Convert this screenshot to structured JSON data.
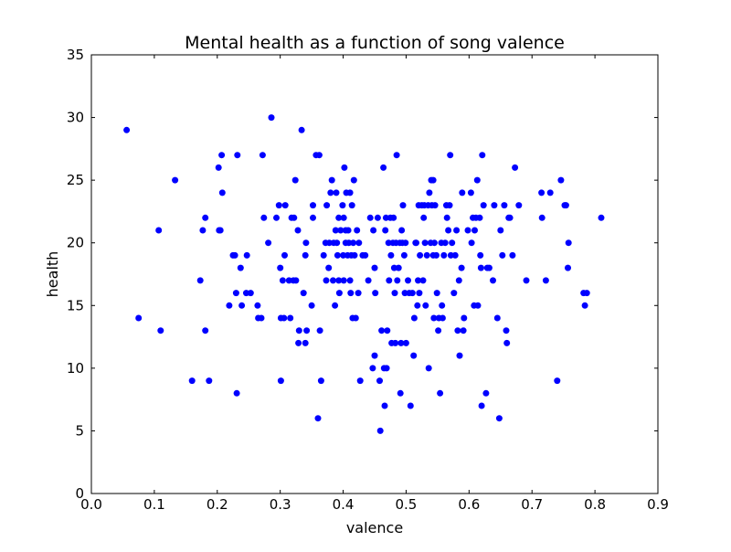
{
  "chart_data": {
    "type": "scatter",
    "title": "Mental health as a function of song valence",
    "xlabel": "valence",
    "ylabel": "health",
    "xlim": [
      0.0,
      0.9
    ],
    "ylim": [
      0,
      35
    ],
    "xticks": [
      "0.0",
      "0.1",
      "0.2",
      "0.3",
      "0.4",
      "0.5",
      "0.6",
      "0.7",
      "0.8",
      "0.9"
    ],
    "yticks": [
      "0",
      "5",
      "10",
      "15",
      "20",
      "25",
      "30",
      "35"
    ],
    "grid": false,
    "marker_color": "#0000ff",
    "series": [
      {
        "points": [
          [
            0.056,
            29
          ],
          [
            0.075,
            14
          ],
          [
            0.107,
            21
          ],
          [
            0.11,
            13
          ],
          [
            0.133,
            25
          ],
          [
            0.16,
            9
          ],
          [
            0.173,
            17
          ],
          [
            0.177,
            21
          ],
          [
            0.181,
            13
          ],
          [
            0.181,
            22
          ],
          [
            0.187,
            9
          ],
          [
            0.202,
            26
          ],
          [
            0.203,
            21
          ],
          [
            0.205,
            21
          ],
          [
            0.207,
            27
          ],
          [
            0.208,
            24
          ],
          [
            0.219,
            15
          ],
          [
            0.225,
            19
          ],
          [
            0.228,
            19
          ],
          [
            0.23,
            16
          ],
          [
            0.231,
            8
          ],
          [
            0.232,
            27
          ],
          [
            0.237,
            18
          ],
          [
            0.239,
            15
          ],
          [
            0.246,
            16
          ],
          [
            0.247,
            19
          ],
          [
            0.253,
            16
          ],
          [
            0.264,
            15
          ],
          [
            0.265,
            14
          ],
          [
            0.27,
            14
          ],
          [
            0.272,
            27
          ],
          [
            0.274,
            22
          ],
          [
            0.281,
            20
          ],
          [
            0.286,
            30
          ],
          [
            0.294,
            22
          ],
          [
            0.298,
            23
          ],
          [
            0.3,
            18
          ],
          [
            0.301,
            9
          ],
          [
            0.301,
            14
          ],
          [
            0.304,
            17
          ],
          [
            0.306,
            14
          ],
          [
            0.307,
            19
          ],
          [
            0.308,
            23
          ],
          [
            0.314,
            17
          ],
          [
            0.316,
            14
          ],
          [
            0.318,
            22
          ],
          [
            0.321,
            17
          ],
          [
            0.322,
            22
          ],
          [
            0.324,
            25
          ],
          [
            0.325,
            17
          ],
          [
            0.328,
            21
          ],
          [
            0.329,
            12
          ],
          [
            0.33,
            13
          ],
          [
            0.334,
            29
          ],
          [
            0.337,
            16
          ],
          [
            0.34,
            12
          ],
          [
            0.34,
            19
          ],
          [
            0.341,
            20
          ],
          [
            0.342,
            13
          ],
          [
            0.35,
            15
          ],
          [
            0.352,
            23
          ],
          [
            0.352,
            22
          ],
          [
            0.357,
            27
          ],
          [
            0.36,
            6
          ],
          [
            0.362,
            27
          ],
          [
            0.363,
            13
          ],
          [
            0.365,
            9
          ],
          [
            0.369,
            19
          ],
          [
            0.372,
            20
          ],
          [
            0.373,
            17
          ],
          [
            0.374,
            23
          ],
          [
            0.377,
            18
          ],
          [
            0.378,
            20
          ],
          [
            0.38,
            24
          ],
          [
            0.382,
            25
          ],
          [
            0.384,
            17
          ],
          [
            0.385,
            20
          ],
          [
            0.387,
            15
          ],
          [
            0.388,
            21
          ],
          [
            0.389,
            24
          ],
          [
            0.39,
            20
          ],
          [
            0.391,
            19
          ],
          [
            0.393,
            17
          ],
          [
            0.393,
            22
          ],
          [
            0.394,
            16
          ],
          [
            0.396,
            21
          ],
          [
            0.399,
            23
          ],
          [
            0.4,
            19
          ],
          [
            0.401,
            22
          ],
          [
            0.401,
            17
          ],
          [
            0.402,
            26
          ],
          [
            0.404,
            21
          ],
          [
            0.404,
            20
          ],
          [
            0.405,
            24
          ],
          [
            0.407,
            19
          ],
          [
            0.408,
            21
          ],
          [
            0.409,
            20
          ],
          [
            0.411,
            24
          ],
          [
            0.411,
            17
          ],
          [
            0.412,
            16
          ],
          [
            0.413,
            19
          ],
          [
            0.414,
            23
          ],
          [
            0.415,
            14
          ],
          [
            0.416,
            20
          ],
          [
            0.417,
            25
          ],
          [
            0.418,
            19
          ],
          [
            0.42,
            14
          ],
          [
            0.422,
            21
          ],
          [
            0.424,
            16
          ],
          [
            0.425,
            20
          ],
          [
            0.427,
            9
          ],
          [
            0.431,
            19
          ],
          [
            0.435,
            19
          ],
          [
            0.44,
            17
          ],
          [
            0.443,
            22
          ],
          [
            0.447,
            10
          ],
          [
            0.448,
            21
          ],
          [
            0.45,
            18
          ],
          [
            0.45,
            11
          ],
          [
            0.451,
            16
          ],
          [
            0.455,
            22
          ],
          [
            0.458,
            9
          ],
          [
            0.459,
            5
          ],
          [
            0.461,
            13
          ],
          [
            0.464,
            26
          ],
          [
            0.465,
            10
          ],
          [
            0.466,
            7
          ],
          [
            0.467,
            21
          ],
          [
            0.468,
            22
          ],
          [
            0.469,
            10
          ],
          [
            0.47,
            13
          ],
          [
            0.472,
            20
          ],
          [
            0.473,
            17
          ],
          [
            0.475,
            22
          ],
          [
            0.476,
            19
          ],
          [
            0.477,
            12
          ],
          [
            0.479,
            20
          ],
          [
            0.48,
            22
          ],
          [
            0.481,
            18
          ],
          [
            0.482,
            16
          ],
          [
            0.483,
            12
          ],
          [
            0.484,
            20
          ],
          [
            0.485,
            27
          ],
          [
            0.486,
            17
          ],
          [
            0.488,
            18
          ],
          [
            0.49,
            20
          ],
          [
            0.491,
            8
          ],
          [
            0.492,
            12
          ],
          [
            0.493,
            21
          ],
          [
            0.494,
            20
          ],
          [
            0.495,
            23
          ],
          [
            0.497,
            19
          ],
          [
            0.498,
            16
          ],
          [
            0.499,
            20
          ],
          [
            0.5,
            12
          ],
          [
            0.503,
            17
          ],
          [
            0.505,
            16
          ],
          [
            0.507,
            7
          ],
          [
            0.51,
            16
          ],
          [
            0.512,
            11
          ],
          [
            0.513,
            14
          ],
          [
            0.515,
            20
          ],
          [
            0.516,
            20
          ],
          [
            0.518,
            15
          ],
          [
            0.519,
            17
          ],
          [
            0.52,
            23
          ],
          [
            0.521,
            16
          ],
          [
            0.522,
            19
          ],
          [
            0.525,
            23
          ],
          [
            0.527,
            17
          ],
          [
            0.528,
            22
          ],
          [
            0.529,
            23
          ],
          [
            0.53,
            20
          ],
          [
            0.531,
            15
          ],
          [
            0.533,
            19
          ],
          [
            0.535,
            23
          ],
          [
            0.536,
            10
          ],
          [
            0.537,
            24
          ],
          [
            0.539,
            20
          ],
          [
            0.54,
            25
          ],
          [
            0.541,
            23
          ],
          [
            0.543,
            25
          ],
          [
            0.543,
            19
          ],
          [
            0.544,
            14
          ],
          [
            0.545,
            20
          ],
          [
            0.546,
            23
          ],
          [
            0.548,
            19
          ],
          [
            0.549,
            16
          ],
          [
            0.551,
            13
          ],
          [
            0.552,
            14
          ],
          [
            0.554,
            8
          ],
          [
            0.556,
            20
          ],
          [
            0.557,
            15
          ],
          [
            0.558,
            14
          ],
          [
            0.56,
            19
          ],
          [
            0.562,
            20
          ],
          [
            0.564,
            23
          ],
          [
            0.565,
            22
          ],
          [
            0.567,
            21
          ],
          [
            0.569,
            23
          ],
          [
            0.57,
            27
          ],
          [
            0.571,
            19
          ],
          [
            0.573,
            20
          ],
          [
            0.576,
            16
          ],
          [
            0.578,
            19
          ],
          [
            0.58,
            21
          ],
          [
            0.582,
            13
          ],
          [
            0.584,
            17
          ],
          [
            0.585,
            11
          ],
          [
            0.588,
            18
          ],
          [
            0.589,
            24
          ],
          [
            0.591,
            13
          ],
          [
            0.592,
            14
          ],
          [
            0.598,
            21
          ],
          [
            0.603,
            24
          ],
          [
            0.604,
            20
          ],
          [
            0.606,
            22
          ],
          [
            0.608,
            15
          ],
          [
            0.609,
            21
          ],
          [
            0.611,
            22
          ],
          [
            0.613,
            25
          ],
          [
            0.614,
            15
          ],
          [
            0.617,
            22
          ],
          [
            0.618,
            19
          ],
          [
            0.619,
            18
          ],
          [
            0.62,
            7
          ],
          [
            0.621,
            27
          ],
          [
            0.623,
            23
          ],
          [
            0.627,
            8
          ],
          [
            0.629,
            18
          ],
          [
            0.632,
            18
          ],
          [
            0.638,
            17
          ],
          [
            0.64,
            23
          ],
          [
            0.645,
            14
          ],
          [
            0.648,
            6
          ],
          [
            0.65,
            21
          ],
          [
            0.653,
            19
          ],
          [
            0.656,
            23
          ],
          [
            0.659,
            13
          ],
          [
            0.66,
            12
          ],
          [
            0.663,
            22
          ],
          [
            0.665,
            22
          ],
          [
            0.669,
            19
          ],
          [
            0.673,
            26
          ],
          [
            0.679,
            23
          ],
          [
            0.691,
            17
          ],
          [
            0.715,
            24
          ],
          [
            0.716,
            22
          ],
          [
            0.722,
            17
          ],
          [
            0.729,
            24
          ],
          [
            0.74,
            9
          ],
          [
            0.746,
            25
          ],
          [
            0.752,
            23
          ],
          [
            0.754,
            23
          ],
          [
            0.757,
            18
          ],
          [
            0.758,
            20
          ],
          [
            0.782,
            16
          ],
          [
            0.784,
            15
          ],
          [
            0.787,
            16
          ],
          [
            0.81,
            22
          ]
        ]
      }
    ]
  }
}
